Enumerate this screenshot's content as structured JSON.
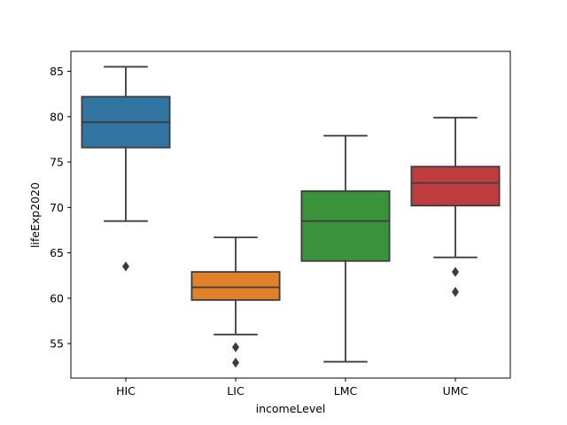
{
  "chart_data": {
    "type": "box",
    "title": "",
    "xlabel": "incomeLevel",
    "ylabel": "lifeExp2020",
    "ylim": [
      51.2,
      87.2
    ],
    "yticks": [
      55,
      60,
      65,
      70,
      75,
      80,
      85
    ],
    "grid": false,
    "legend": "none",
    "categories": [
      "HIC",
      "LIC",
      "LMC",
      "UMC"
    ],
    "boxes": [
      {
        "category": "HIC",
        "color": "#3274a1",
        "whisker_low": 68.5,
        "q1": 76.6,
        "median": 79.4,
        "q3": 82.2,
        "whisker_high": 85.5,
        "outliers": [
          63.5
        ]
      },
      {
        "category": "LIC",
        "color": "#e1812c",
        "whisker_low": 56.0,
        "q1": 59.8,
        "median": 61.2,
        "q3": 62.9,
        "whisker_high": 66.7,
        "outliers": [
          54.6,
          52.9
        ]
      },
      {
        "category": "LMC",
        "color": "#3a923a",
        "whisker_low": 53.0,
        "q1": 64.1,
        "median": 68.5,
        "q3": 71.8,
        "whisker_high": 77.9,
        "outliers": []
      },
      {
        "category": "UMC",
        "color": "#c03d3e",
        "whisker_low": 64.5,
        "q1": 70.2,
        "median": 72.7,
        "q3": 74.5,
        "whisker_high": 79.9,
        "outliers": [
          62.9,
          60.7
        ]
      }
    ]
  },
  "style": {
    "line_color": "#3d3d3d",
    "axis_color": "#000000"
  }
}
